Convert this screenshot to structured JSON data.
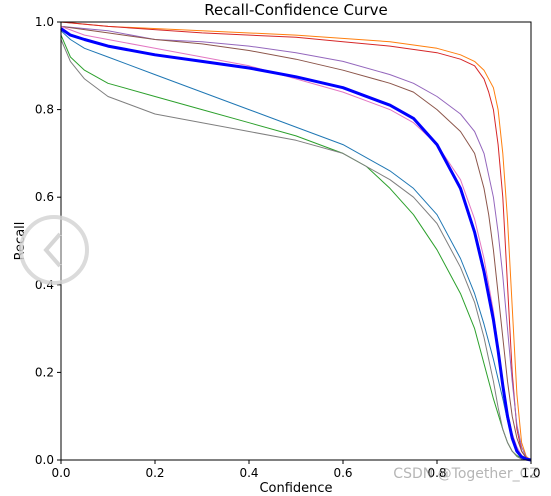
{
  "chart_data": {
    "type": "line",
    "title": "Recall-Confidence Curve",
    "xlabel": "Confidence",
    "ylabel": "Recall",
    "xlim": [
      0,
      1
    ],
    "ylim": [
      0,
      1
    ],
    "xticks": [
      "0.0",
      "0.2",
      "0.4",
      "0.6",
      "0.8",
      "1.0"
    ],
    "yticks": [
      "0.0",
      "0.2",
      "0.4",
      "0.6",
      "0.8",
      "1.0"
    ],
    "grid": false,
    "legend": "none",
    "series": [
      {
        "color": "#1f77b4",
        "width": 1,
        "x": [
          0.0,
          0.02,
          0.05,
          0.1,
          0.2,
          0.3,
          0.4,
          0.5,
          0.6,
          0.7,
          0.75,
          0.8,
          0.85,
          0.88,
          0.9,
          0.92,
          0.94,
          0.95,
          0.96,
          0.97,
          0.98,
          0.99,
          1.0
        ],
        "y": [
          0.98,
          0.96,
          0.94,
          0.92,
          0.88,
          0.84,
          0.8,
          0.76,
          0.72,
          0.66,
          0.62,
          0.56,
          0.46,
          0.38,
          0.31,
          0.23,
          0.14,
          0.09,
          0.05,
          0.025,
          0.01,
          0.003,
          0.0
        ]
      },
      {
        "color": "#ff7f0e",
        "width": 1,
        "x": [
          0.0,
          0.1,
          0.3,
          0.5,
          0.7,
          0.8,
          0.85,
          0.88,
          0.9,
          0.92,
          0.93,
          0.94,
          0.95,
          0.96,
          0.97,
          0.98,
          0.99,
          1.0
        ],
        "y": [
          1.0,
          0.99,
          0.98,
          0.97,
          0.955,
          0.94,
          0.925,
          0.91,
          0.89,
          0.85,
          0.8,
          0.7,
          0.55,
          0.35,
          0.15,
          0.04,
          0.008,
          0.0
        ]
      },
      {
        "color": "#2ca02c",
        "width": 1,
        "x": [
          0.0,
          0.02,
          0.05,
          0.1,
          0.2,
          0.3,
          0.4,
          0.5,
          0.6,
          0.65,
          0.7,
          0.75,
          0.8,
          0.85,
          0.88,
          0.9,
          0.92,
          0.94,
          0.95,
          0.96,
          0.97,
          0.98,
          0.99,
          1.0
        ],
        "y": [
          0.97,
          0.92,
          0.89,
          0.86,
          0.83,
          0.8,
          0.77,
          0.74,
          0.7,
          0.67,
          0.62,
          0.56,
          0.48,
          0.38,
          0.3,
          0.22,
          0.14,
          0.07,
          0.04,
          0.02,
          0.01,
          0.004,
          0.001,
          0.0
        ]
      },
      {
        "color": "#d62728",
        "width": 1,
        "x": [
          0.0,
          0.1,
          0.3,
          0.5,
          0.6,
          0.7,
          0.8,
          0.85,
          0.88,
          0.9,
          0.91,
          0.92,
          0.93,
          0.94,
          0.95,
          0.96,
          0.97,
          0.98,
          0.99,
          1.0
        ],
        "y": [
          1.0,
          0.99,
          0.975,
          0.965,
          0.955,
          0.945,
          0.93,
          0.915,
          0.9,
          0.87,
          0.84,
          0.8,
          0.72,
          0.6,
          0.4,
          0.2,
          0.07,
          0.02,
          0.004,
          0.0
        ]
      },
      {
        "color": "#9467bd",
        "width": 1,
        "x": [
          0.0,
          0.1,
          0.2,
          0.3,
          0.4,
          0.5,
          0.6,
          0.7,
          0.75,
          0.8,
          0.85,
          0.88,
          0.9,
          0.92,
          0.93,
          0.94,
          0.95,
          0.96,
          0.97,
          0.98,
          0.99,
          1.0
        ],
        "y": [
          0.99,
          0.98,
          0.96,
          0.955,
          0.945,
          0.93,
          0.91,
          0.88,
          0.86,
          0.83,
          0.79,
          0.75,
          0.7,
          0.6,
          0.52,
          0.42,
          0.3,
          0.18,
          0.08,
          0.03,
          0.006,
          0.0
        ]
      },
      {
        "color": "#8c564b",
        "width": 1,
        "x": [
          0.0,
          0.1,
          0.2,
          0.3,
          0.4,
          0.5,
          0.6,
          0.7,
          0.75,
          0.8,
          0.85,
          0.88,
          0.9,
          0.91,
          0.92,
          0.93,
          0.94,
          0.95,
          0.96,
          0.97,
          0.98,
          0.99,
          1.0
        ],
        "y": [
          0.99,
          0.975,
          0.96,
          0.95,
          0.935,
          0.915,
          0.89,
          0.86,
          0.84,
          0.8,
          0.75,
          0.7,
          0.62,
          0.56,
          0.48,
          0.38,
          0.28,
          0.18,
          0.1,
          0.05,
          0.02,
          0.005,
          0.0
        ]
      },
      {
        "color": "#e377c2",
        "width": 1,
        "x": [
          0.0,
          0.05,
          0.1,
          0.2,
          0.3,
          0.4,
          0.5,
          0.6,
          0.7,
          0.75,
          0.8,
          0.85,
          0.88,
          0.9,
          0.92,
          0.93,
          0.94,
          0.95,
          0.96,
          0.97,
          0.98,
          0.99,
          1.0
        ],
        "y": [
          0.99,
          0.97,
          0.96,
          0.94,
          0.92,
          0.9,
          0.87,
          0.84,
          0.8,
          0.77,
          0.72,
          0.64,
          0.55,
          0.46,
          0.34,
          0.26,
          0.18,
          0.11,
          0.06,
          0.03,
          0.01,
          0.003,
          0.0
        ]
      },
      {
        "color": "#7f7f7f",
        "width": 1,
        "x": [
          0.0,
          0.02,
          0.05,
          0.1,
          0.2,
          0.3,
          0.4,
          0.5,
          0.6,
          0.65,
          0.7,
          0.75,
          0.8,
          0.85,
          0.88,
          0.9,
          0.92,
          0.93,
          0.94,
          0.95,
          0.96,
          0.97,
          0.98,
          0.99,
          1.0
        ],
        "y": [
          0.96,
          0.91,
          0.87,
          0.83,
          0.79,
          0.77,
          0.75,
          0.73,
          0.7,
          0.67,
          0.64,
          0.6,
          0.54,
          0.44,
          0.36,
          0.28,
          0.18,
          0.12,
          0.07,
          0.04,
          0.02,
          0.008,
          0.002,
          0.0,
          0.0
        ]
      },
      {
        "color": "#0000ff",
        "width": 3,
        "x": [
          0.0,
          0.02,
          0.05,
          0.1,
          0.2,
          0.3,
          0.4,
          0.5,
          0.6,
          0.7,
          0.75,
          0.8,
          0.85,
          0.88,
          0.9,
          0.92,
          0.93,
          0.94,
          0.95,
          0.96,
          0.97,
          0.98,
          0.99,
          1.0
        ],
        "y": [
          0.985,
          0.97,
          0.96,
          0.945,
          0.925,
          0.91,
          0.895,
          0.875,
          0.85,
          0.81,
          0.78,
          0.72,
          0.62,
          0.52,
          0.43,
          0.32,
          0.25,
          0.17,
          0.1,
          0.05,
          0.02,
          0.007,
          0.002,
          0.0
        ]
      }
    ]
  },
  "watermark": "CSDN @Together_CZ"
}
